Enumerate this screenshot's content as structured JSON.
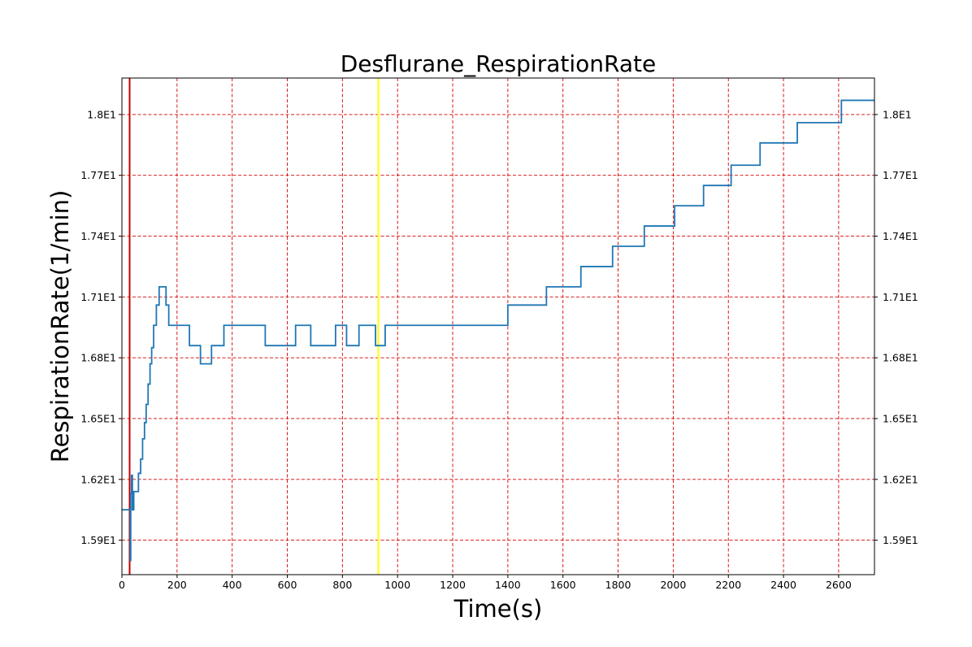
{
  "chart_data": {
    "type": "line",
    "title": "Desflurane_RespirationRate",
    "xlabel": "Time(s)",
    "ylabel": "RespirationRate(1/min)",
    "xlim": [
      0,
      2730
    ],
    "ylim": [
      15.73,
      18.18
    ],
    "x_ticks": [
      0,
      200,
      400,
      600,
      800,
      1000,
      1200,
      1400,
      1600,
      1800,
      2000,
      2200,
      2400,
      2600
    ],
    "x_tick_labels": [
      "0",
      "200",
      "400",
      "600",
      "800",
      "1000",
      "1200",
      "1400",
      "1600",
      "1800",
      "2000",
      "2200",
      "2400",
      "2600"
    ],
    "y_ticks": [
      15.9,
      16.2,
      16.5,
      16.8,
      17.1,
      17.4,
      17.7,
      18.0
    ],
    "y_tick_labels": [
      "1.59E1",
      "1.62E1",
      "1.65E1",
      "1.68E1",
      "1.71E1",
      "1.74E1",
      "1.77E1",
      "1.8E1"
    ],
    "grid": true,
    "grid_color": "#d40000",
    "right_axis_mirrored": true,
    "vertical_markers": [
      {
        "x": 28,
        "color": "#c00000"
      },
      {
        "x": 930,
        "color": "#ffff00"
      }
    ],
    "series": [
      {
        "color": "#1f77b4",
        "step": true,
        "x": [
          0,
          30,
          32,
          35,
          38,
          43,
          60,
          68,
          75,
          82,
          88,
          95,
          102,
          108,
          115,
          125,
          135,
          145,
          160,
          170,
          245,
          285,
          325,
          370,
          520,
          630,
          685,
          775,
          815,
          860,
          920,
          955,
          1400,
          1540,
          1665,
          1780,
          1895,
          2005,
          2110,
          2210,
          2315,
          2450,
          2610,
          2730
        ],
        "y": [
          16.05,
          15.8,
          16.13,
          16.22,
          16.05,
          16.14,
          16.23,
          16.3,
          16.4,
          16.48,
          16.57,
          16.67,
          16.77,
          16.85,
          16.96,
          17.06,
          17.15,
          17.15,
          17.06,
          16.96,
          16.86,
          16.77,
          16.86,
          16.96,
          16.86,
          16.96,
          16.86,
          16.96,
          16.86,
          16.96,
          16.86,
          16.96,
          17.06,
          17.15,
          17.25,
          17.35,
          17.45,
          17.55,
          17.65,
          17.75,
          17.86,
          17.96,
          18.07,
          18.07
        ]
      }
    ]
  }
}
